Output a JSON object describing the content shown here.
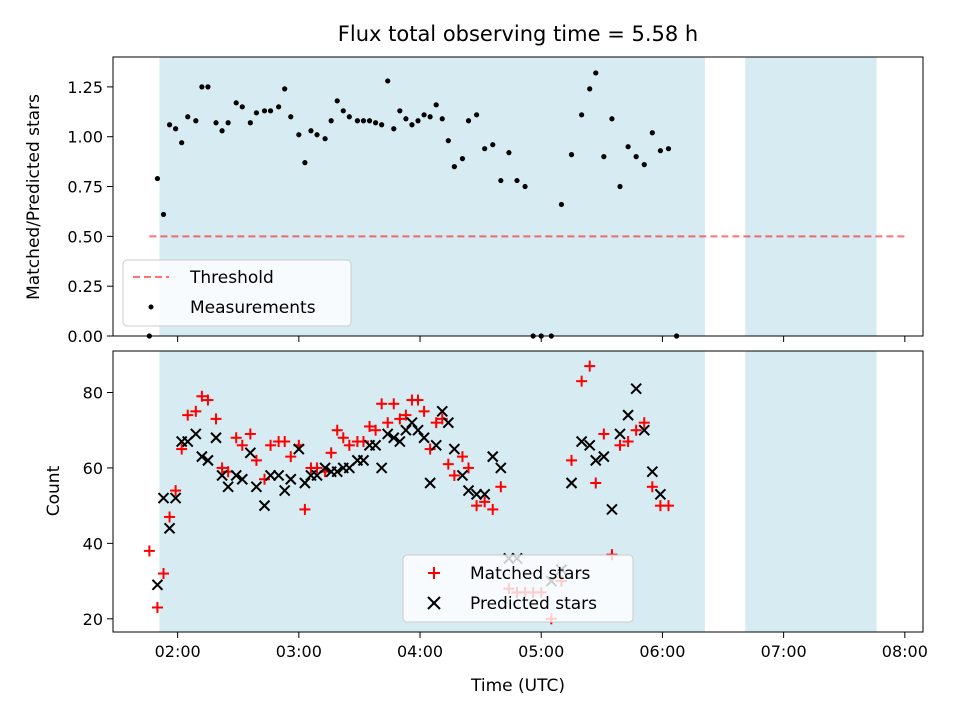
{
  "chart_data": [
    {
      "type": "scatter",
      "title": "Flux total observing time = 5.58 h",
      "ylabel": "Matched/Predicted stars",
      "xlabel": "",
      "xlim": [
        "01:28",
        "08:09"
      ],
      "ylim": [
        0,
        1.4
      ],
      "x_tick_labels": [
        "02:00",
        "03:00",
        "04:00",
        "05:00",
        "06:00",
        "07:00",
        "08:00"
      ],
      "y_tick_labels": [
        "0.00",
        "0.25",
        "0.50",
        "0.75",
        "1.00",
        "1.25"
      ],
      "y_ticks": [
        0,
        0.25,
        0.5,
        0.75,
        1.0,
        1.25
      ],
      "shaded_intervals": [
        [
          "01:51",
          "06:21"
        ],
        [
          "06:41",
          "07:46"
        ]
      ],
      "shade_color": "#add8e6",
      "threshold": {
        "name": "Threshold",
        "value": 0.5,
        "x_range": [
          "01:46",
          "08:01"
        ],
        "color": "#ff0000"
      },
      "series": [
        {
          "name": "Measurements",
          "color": "#000000",
          "points": [
            [
              "01:46",
              0.0
            ],
            [
              "01:50",
              0.79
            ],
            [
              "01:53",
              0.61
            ],
            [
              "01:56",
              1.06
            ],
            [
              "01:59",
              1.04
            ],
            [
              "02:02",
              0.97
            ],
            [
              "02:05",
              1.1
            ],
            [
              "02:09",
              1.08
            ],
            [
              "02:12",
              1.25
            ],
            [
              "02:15",
              1.25
            ],
            [
              "02:19",
              1.07
            ],
            [
              "02:22",
              1.03
            ],
            [
              "02:25",
              1.07
            ],
            [
              "02:29",
              1.17
            ],
            [
              "02:32",
              1.15
            ],
            [
              "02:36",
              1.07
            ],
            [
              "02:39",
              1.12
            ],
            [
              "02:43",
              1.13
            ],
            [
              "02:46",
              1.13
            ],
            [
              "02:50",
              1.15
            ],
            [
              "02:53",
              1.24
            ],
            [
              "02:56",
              1.1
            ],
            [
              "03:00",
              1.01
            ],
            [
              "03:03",
              0.87
            ],
            [
              "03:06",
              1.03
            ],
            [
              "03:09",
              1.01
            ],
            [
              "03:13",
              0.99
            ],
            [
              "03:16",
              1.08
            ],
            [
              "03:19",
              1.18
            ],
            [
              "03:22",
              1.13
            ],
            [
              "03:25",
              1.1
            ],
            [
              "03:29",
              1.08
            ],
            [
              "03:32",
              1.08
            ],
            [
              "03:35",
              1.08
            ],
            [
              "03:38",
              1.07
            ],
            [
              "03:41",
              1.06
            ],
            [
              "03:44",
              1.28
            ],
            [
              "03:47",
              1.04
            ],
            [
              "03:50",
              1.13
            ],
            [
              "03:53",
              1.09
            ],
            [
              "03:56",
              1.06
            ],
            [
              "03:59",
              1.08
            ],
            [
              "04:02",
              1.11
            ],
            [
              "04:05",
              1.1
            ],
            [
              "04:08",
              1.16
            ],
            [
              "04:11",
              1.09
            ],
            [
              "04:14",
              0.98
            ],
            [
              "04:17",
              0.85
            ],
            [
              "04:21",
              0.89
            ],
            [
              "04:24",
              1.08
            ],
            [
              "04:28",
              1.11
            ],
            [
              "04:32",
              0.94
            ],
            [
              "04:36",
              0.96
            ],
            [
              "04:40",
              0.78
            ],
            [
              "04:44",
              0.92
            ],
            [
              "04:48",
              0.78
            ],
            [
              "04:52",
              0.75
            ],
            [
              "04:56",
              0.0
            ],
            [
              "05:00",
              0.0
            ],
            [
              "05:05",
              0.0
            ],
            [
              "05:10",
              0.66
            ],
            [
              "05:15",
              0.91
            ],
            [
              "05:20",
              1.11
            ],
            [
              "05:24",
              1.24
            ],
            [
              "05:27",
              1.32
            ],
            [
              "05:31",
              0.9
            ],
            [
              "05:35",
              1.09
            ],
            [
              "05:39",
              0.75
            ],
            [
              "05:43",
              0.95
            ],
            [
              "05:47",
              0.9
            ],
            [
              "05:51",
              0.86
            ],
            [
              "05:55",
              1.02
            ],
            [
              "05:59",
              0.93
            ],
            [
              "06:03",
              0.94
            ],
            [
              "06:07",
              0.0
            ]
          ]
        }
      ],
      "legend": {
        "placement": "lower-left",
        "entries": [
          "Threshold",
          "Measurements"
        ]
      }
    },
    {
      "type": "scatter",
      "title": "",
      "xlabel": "Time (UTC)",
      "ylabel": "Count",
      "xlim": [
        "01:28",
        "08:09"
      ],
      "ylim": [
        16.5,
        91
      ],
      "x_tick_labels": [
        "02:00",
        "03:00",
        "04:00",
        "05:00",
        "06:00",
        "07:00",
        "08:00"
      ],
      "y_tick_labels": [
        "20",
        "40",
        "60",
        "80"
      ],
      "y_ticks": [
        20,
        40,
        60,
        80
      ],
      "shaded_intervals": [
        [
          "01:51",
          "06:21"
        ],
        [
          "06:41",
          "07:46"
        ]
      ],
      "shade_color": "#add8e6",
      "series": [
        {
          "name": "Matched stars",
          "color": "#ff0000",
          "marker": "+",
          "points": [
            [
              "01:46",
              38
            ],
            [
              "01:50",
              23
            ],
            [
              "01:53",
              32
            ],
            [
              "01:56",
              47
            ],
            [
              "01:59",
              54
            ],
            [
              "02:02",
              65
            ],
            [
              "02:05",
              74
            ],
            [
              "02:09",
              75
            ],
            [
              "02:12",
              79
            ],
            [
              "02:15",
              78
            ],
            [
              "02:19",
              73
            ],
            [
              "02:22",
              60
            ],
            [
              "02:25",
              59
            ],
            [
              "02:29",
              68
            ],
            [
              "02:32",
              66
            ],
            [
              "02:36",
              69
            ],
            [
              "02:39",
              62
            ],
            [
              "02:43",
              57
            ],
            [
              "02:46",
              66
            ],
            [
              "02:50",
              67
            ],
            [
              "02:53",
              67
            ],
            [
              "02:56",
              63
            ],
            [
              "03:00",
              66
            ],
            [
              "03:03",
              49
            ],
            [
              "03:06",
              60
            ],
            [
              "03:09",
              60
            ],
            [
              "03:13",
              59
            ],
            [
              "03:16",
              64
            ],
            [
              "03:19",
              70
            ],
            [
              "03:22",
              68
            ],
            [
              "03:25",
              66
            ],
            [
              "03:29",
              67
            ],
            [
              "03:32",
              67
            ],
            [
              "03:35",
              71
            ],
            [
              "03:38",
              70
            ],
            [
              "03:41",
              77
            ],
            [
              "03:44",
              72
            ],
            [
              "03:47",
              77
            ],
            [
              "03:50",
              73
            ],
            [
              "03:53",
              74
            ],
            [
              "03:56",
              78
            ],
            [
              "03:59",
              78
            ],
            [
              "04:02",
              75
            ],
            [
              "04:05",
              65
            ],
            [
              "04:08",
              72
            ],
            [
              "04:11",
              73
            ],
            [
              "04:14",
              61
            ],
            [
              "04:17",
              58
            ],
            [
              "04:21",
              63
            ],
            [
              "04:24",
              60
            ],
            [
              "04:28",
              50
            ],
            [
              "04:32",
              51
            ],
            [
              "04:36",
              49
            ],
            [
              "04:40",
              55
            ],
            [
              "04:44",
              28
            ],
            [
              "04:48",
              27
            ],
            [
              "04:52",
              27
            ],
            [
              "04:56",
              27
            ],
            [
              "05:00",
              27
            ],
            [
              "05:05",
              20
            ],
            [
              "05:10",
              30
            ],
            [
              "05:15",
              62
            ],
            [
              "05:20",
              83
            ],
            [
              "05:24",
              87
            ],
            [
              "05:27",
              56
            ],
            [
              "05:31",
              69
            ],
            [
              "05:35",
              37
            ],
            [
              "05:39",
              66
            ],
            [
              "05:43",
              67
            ],
            [
              "05:47",
              70
            ],
            [
              "05:51",
              72
            ],
            [
              "05:55",
              55
            ],
            [
              "05:59",
              50
            ],
            [
              "06:03",
              50
            ]
          ]
        },
        {
          "name": "Predicted stars",
          "color": "#000000",
          "marker": "x",
          "points": [
            [
              "01:50",
              29
            ],
            [
              "01:53",
              52
            ],
            [
              "01:56",
              44
            ],
            [
              "01:59",
              52
            ],
            [
              "02:02",
              67
            ],
            [
              "02:05",
              67
            ],
            [
              "02:09",
              69
            ],
            [
              "02:12",
              63
            ],
            [
              "02:15",
              62
            ],
            [
              "02:19",
              68
            ],
            [
              "02:22",
              58
            ],
            [
              "02:25",
              55
            ],
            [
              "02:29",
              58
            ],
            [
              "02:32",
              57
            ],
            [
              "02:36",
              64
            ],
            [
              "02:39",
              55
            ],
            [
              "02:43",
              50
            ],
            [
              "02:46",
              58
            ],
            [
              "02:50",
              58
            ],
            [
              "02:53",
              54
            ],
            [
              "02:56",
              57
            ],
            [
              "03:00",
              65
            ],
            [
              "03:03",
              56
            ],
            [
              "03:06",
              58
            ],
            [
              "03:09",
              58
            ],
            [
              "03:13",
              60
            ],
            [
              "03:16",
              59
            ],
            [
              "03:19",
              59
            ],
            [
              "03:22",
              60
            ],
            [
              "03:25",
              60
            ],
            [
              "03:29",
              62
            ],
            [
              "03:32",
              62
            ],
            [
              "03:35",
              66
            ],
            [
              "03:38",
              66
            ],
            [
              "03:41",
              60
            ],
            [
              "03:44",
              69
            ],
            [
              "03:47",
              68
            ],
            [
              "03:50",
              67
            ],
            [
              "03:53",
              70
            ],
            [
              "03:56",
              72
            ],
            [
              "03:59",
              70
            ],
            [
              "04:02",
              68
            ],
            [
              "04:05",
              56
            ],
            [
              "04:08",
              66
            ],
            [
              "04:11",
              75
            ],
            [
              "04:14",
              72
            ],
            [
              "04:17",
              65
            ],
            [
              "04:21",
              58
            ],
            [
              "04:24",
              54
            ],
            [
              "04:28",
              53
            ],
            [
              "04:32",
              53
            ],
            [
              "04:36",
              63
            ],
            [
              "04:40",
              60
            ],
            [
              "04:44",
              36
            ],
            [
              "04:48",
              36
            ],
            [
              "05:05",
              30
            ],
            [
              "05:10",
              33
            ],
            [
              "05:15",
              56
            ],
            [
              "05:20",
              67
            ],
            [
              "05:24",
              66
            ],
            [
              "05:27",
              62
            ],
            [
              "05:31",
              63
            ],
            [
              "05:35",
              49
            ],
            [
              "05:39",
              69
            ],
            [
              "05:43",
              74
            ],
            [
              "05:47",
              81
            ],
            [
              "05:51",
              70
            ],
            [
              "05:55",
              59
            ],
            [
              "05:59",
              53
            ]
          ]
        }
      ],
      "legend": {
        "placement": "lower-center",
        "entries": [
          "Matched stars",
          "Predicted stars"
        ]
      }
    }
  ]
}
